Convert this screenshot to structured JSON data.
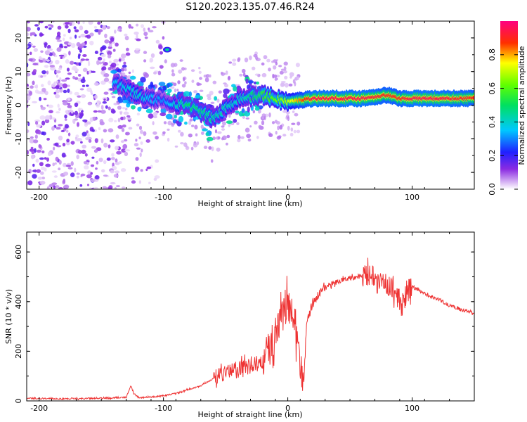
{
  "title": "S120.2023.135.07.46.R24",
  "chart_data": [
    {
      "type": "heatmap",
      "title": "S120.2023.135.07.46.R24",
      "xlabel": "Height of straight line (km)",
      "ylabel": "Frequency (Hz)",
      "xlim": [
        -210,
        150
      ],
      "ylim": [
        -25,
        25
      ],
      "xticks": [
        -200,
        -100,
        0,
        100
      ],
      "yticks": [
        -20,
        -10,
        0,
        10,
        20
      ],
      "colorbar": {
        "label": "Normalized spectral amplitude",
        "range": [
          0,
          1
        ],
        "ticks": [
          "0.0",
          "0.2",
          "0.4",
          "0.6",
          "0.8"
        ],
        "colormap": "white-purple-blue-cyan-green-yellow-red-magenta"
      },
      "signal_ridge": {
        "description": "narrow high-amplitude line near +2 Hz from about -20 km to 150 km",
        "height_km": [
          -140,
          -120,
          -100,
          -80,
          -60,
          -40,
          -20,
          0,
          20,
          40,
          60,
          80,
          90,
          100,
          120,
          150
        ],
        "frequency_hz": [
          7,
          3,
          1,
          0,
          -4,
          2,
          3,
          1,
          2,
          2,
          2,
          3,
          2,
          2,
          2,
          2
        ],
        "amplitude": [
          0.35,
          0.4,
          0.3,
          0.5,
          0.45,
          0.4,
          0.55,
          0.7,
          0.95,
          0.95,
          0.95,
          0.9,
          0.9,
          0.95,
          0.95,
          0.9
        ]
      },
      "noise_region": {
        "height_km": [
          -210,
          -100
        ],
        "description": "broadband low-amplitude purple speckle"
      }
    },
    {
      "type": "line",
      "xlabel": "Height of straight line (km)",
      "ylabel": "SNR (10 * v/v)",
      "xlim": [
        -210,
        150
      ],
      "ylim": [
        0,
        680
      ],
      "xticks": [
        -200,
        -100,
        0,
        100
      ],
      "yticks": [
        0,
        200,
        400,
        600
      ],
      "series": [
        {
          "name": "SNR",
          "color": "#ee3333",
          "x": [
            -210,
            -180,
            -150,
            -130,
            -126,
            -124,
            -120,
            -100,
            -90,
            -80,
            -70,
            -60,
            -50,
            -40,
            -30,
            -20,
            -15,
            -10,
            -5,
            0,
            5,
            10,
            13,
            15,
            20,
            30,
            40,
            50,
            60,
            70,
            75,
            80,
            85,
            90,
            92,
            95,
            100,
            110,
            120,
            130,
            140,
            150
          ],
          "y": [
            10,
            8,
            10,
            14,
            60,
            30,
            12,
            20,
            30,
            45,
            60,
            90,
            110,
            130,
            140,
            150,
            200,
            260,
            330,
            380,
            320,
            120,
            90,
            300,
            400,
            450,
            480,
            495,
            500,
            505,
            480,
            460,
            440,
            400,
            380,
            420,
            460,
            430,
            410,
            385,
            365,
            350
          ]
        }
      ]
    }
  ]
}
